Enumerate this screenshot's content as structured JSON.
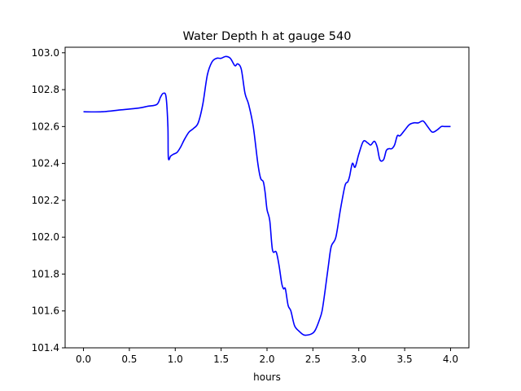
{
  "chart_data": {
    "type": "line",
    "title": "Water Depth h at gauge 540",
    "xlabel": "hours",
    "ylabel": "",
    "xlim": [
      -0.2,
      4.2
    ],
    "ylim": [
      101.4,
      103.03
    ],
    "xticks": [
      0.0,
      0.5,
      1.0,
      1.5,
      2.0,
      2.5,
      3.0,
      3.5,
      4.0
    ],
    "xtick_labels": [
      "0.0",
      "0.5",
      "1.0",
      "1.5",
      "2.0",
      "2.5",
      "3.0",
      "3.5",
      "4.0"
    ],
    "yticks": [
      101.4,
      101.6,
      101.8,
      102.0,
      102.2,
      102.4,
      102.6,
      102.8,
      103.0
    ],
    "ytick_labels": [
      "101.4",
      "101.6",
      "101.8",
      "102.0",
      "102.2",
      "102.4",
      "102.6",
      "102.8",
      "103.0"
    ],
    "grid": false,
    "series": [
      {
        "color": "#0000ff",
        "x": [
          0.0,
          0.2,
          0.4,
          0.6,
          0.7,
          0.8,
          0.84,
          0.87,
          0.9,
          0.92,
          0.925,
          0.95,
          0.98,
          1.02,
          1.06,
          1.1,
          1.15,
          1.2,
          1.25,
          1.3,
          1.35,
          1.4,
          1.45,
          1.5,
          1.55,
          1.6,
          1.65,
          1.68,
          1.72,
          1.76,
          1.8,
          1.85,
          1.9,
          1.93,
          1.96,
          1.98,
          2.0,
          2.03,
          2.06,
          2.1,
          2.13,
          2.16,
          2.18,
          2.2,
          2.23,
          2.26,
          2.3,
          2.35,
          2.4,
          2.45,
          2.5,
          2.53,
          2.57,
          2.6,
          2.63,
          2.67,
          2.7,
          2.75,
          2.8,
          2.85,
          2.88,
          2.9,
          2.93,
          2.96,
          3.0,
          3.05,
          3.1,
          3.13,
          3.17,
          3.2,
          3.23,
          3.27,
          3.3,
          3.33,
          3.36,
          3.39,
          3.42,
          3.45,
          3.5,
          3.55,
          3.6,
          3.65,
          3.7,
          3.75,
          3.8,
          3.85,
          3.9,
          3.93,
          3.97,
          4.0
        ],
        "y": [
          102.68,
          102.68,
          102.69,
          102.7,
          102.71,
          102.72,
          102.76,
          102.78,
          102.76,
          102.6,
          102.43,
          102.44,
          102.45,
          102.46,
          102.49,
          102.53,
          102.57,
          102.59,
          102.62,
          102.72,
          102.88,
          102.95,
          102.97,
          102.97,
          102.98,
          102.97,
          102.93,
          102.94,
          102.91,
          102.78,
          102.72,
          102.6,
          102.4,
          102.32,
          102.3,
          102.24,
          102.15,
          102.09,
          101.93,
          101.92,
          101.85,
          101.75,
          101.72,
          101.72,
          101.63,
          101.6,
          101.52,
          101.49,
          101.47,
          101.47,
          101.48,
          101.5,
          101.55,
          101.6,
          101.7,
          101.85,
          101.95,
          102.0,
          102.15,
          102.28,
          102.3,
          102.33,
          102.4,
          102.38,
          102.45,
          102.52,
          102.51,
          102.5,
          102.52,
          102.49,
          102.42,
          102.42,
          102.47,
          102.48,
          102.48,
          102.5,
          102.55,
          102.55,
          102.58,
          102.61,
          102.62,
          102.62,
          102.63,
          102.6,
          102.57,
          102.58,
          102.6,
          102.6,
          102.6,
          102.6
        ]
      }
    ]
  }
}
